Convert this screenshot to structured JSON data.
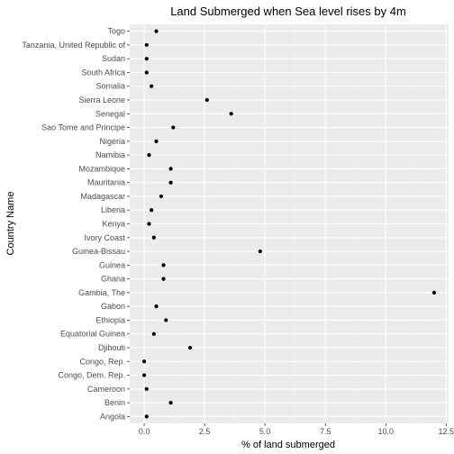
{
  "chart_data": {
    "type": "scatter",
    "title": "Land Submerged when Sea level rises by 4m",
    "xlabel": "% of land submerged",
    "ylabel": "Country Name",
    "xlim": [
      -0.6,
      12.6
    ],
    "x_ticks": [
      0.0,
      2.5,
      5.0,
      7.5,
      10.0,
      12.5
    ],
    "x_tick_labels": [
      "0.0",
      "2.5",
      "5.0",
      "7.5",
      "10.0",
      "12.5"
    ],
    "grid": true,
    "legend": "none",
    "categories": [
      "Angola",
      "Benin",
      "Cameroon",
      "Congo, Dem. Rep.",
      "Congo, Rep.",
      "Djibouti",
      "Equatorial Guinea",
      "Ethiopia",
      "Gabon",
      "Gambia, The",
      "Ghana",
      "Guinea",
      "Guinea-Bissau",
      "Ivory Coast",
      "Kenya",
      "Liberia",
      "Madagascar",
      "Mauritania",
      "Mozambique",
      "Namibia",
      "Nigeria",
      "Sao Tome and Principe",
      "Senegal",
      "Sierra Leone",
      "Somalia",
      "South Africa",
      "Sudan",
      "Tanzania, United Republic of",
      "Togo"
    ],
    "values": [
      0.1,
      1.1,
      0.1,
      0.0,
      0.0,
      1.9,
      0.4,
      0.9,
      0.5,
      12.0,
      0.8,
      0.8,
      4.8,
      0.4,
      0.2,
      0.3,
      0.7,
      1.1,
      1.1,
      0.2,
      0.5,
      1.2,
      3.6,
      2.6,
      0.3,
      0.1,
      0.1,
      0.1,
      0.5
    ]
  },
  "colors": {
    "panel_background": "#ebebeb",
    "grid_major": "#ffffff",
    "grid_minor": "#f2f2f2",
    "point": "#000000",
    "tick_text": "#4d4d4d"
  }
}
